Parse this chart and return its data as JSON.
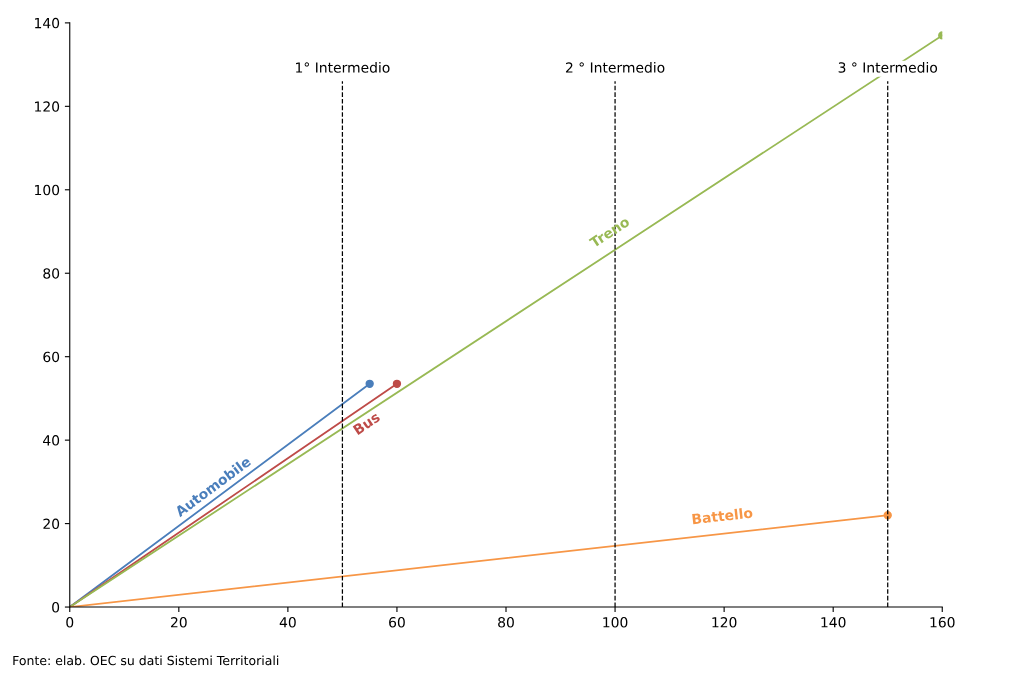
{
  "chart_data": {
    "type": "line",
    "marker": "circle",
    "line_style": "solid",
    "legend": false,
    "grid": false,
    "xlim": [
      0,
      160
    ],
    "xticks": [
      0,
      20,
      40,
      60,
      80,
      100,
      120,
      140,
      160
    ],
    "ylim": [
      0,
      140
    ],
    "yticks": [
      0,
      20,
      40,
      60,
      80,
      100,
      120,
      140
    ],
    "series": [
      {
        "name": "Automobile",
        "color": "#4a7ebb",
        "x": [
          0,
          55
        ],
        "values": [
          0,
          53.5
        ]
      },
      {
        "name": "Bus",
        "color": "#be4b48",
        "x": [
          0,
          60
        ],
        "values": [
          0,
          53.5
        ]
      },
      {
        "name": "Treno",
        "color": "#98b954",
        "x": [
          0,
          160
        ],
        "values": [
          0,
          137
        ]
      },
      {
        "name": "Battello",
        "color": "#f79646",
        "x": [
          0,
          150
        ],
        "values": [
          0,
          22
        ]
      }
    ],
    "ref_lines": [
      {
        "axis": "x",
        "value": 50,
        "label": "1° Intermedio",
        "color": "#000000",
        "line_style": "dashed"
      },
      {
        "axis": "x",
        "value": 100,
        "label": "2 ° Intermedio",
        "color": "#000000",
        "line_style": "dashed"
      },
      {
        "axis": "x",
        "value": 150,
        "label": "3 ° Intermedio",
        "color": "#000000",
        "line_style": "dashed"
      }
    ],
    "annotations": [
      "Fonte: elab. OEC su dati Sistemi Territoriali"
    ]
  }
}
